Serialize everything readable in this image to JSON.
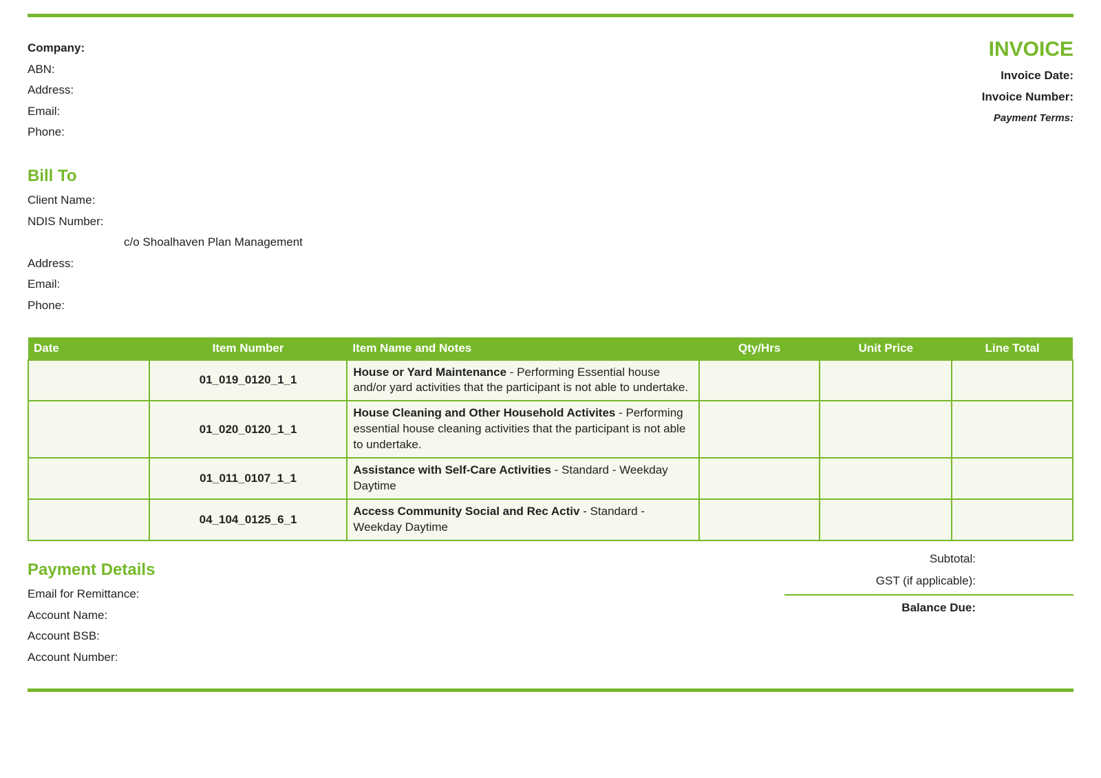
{
  "colors": {
    "accent": "#76b82a",
    "row_bg": "#f5f8ec",
    "text": "#222222",
    "header_text": "#ffffff"
  },
  "header": {
    "title": "INVOICE",
    "company": {
      "company_label": "Company:",
      "abn_label": "ABN:",
      "address_label": "Address:",
      "email_label": "Email:",
      "phone_label": "Phone:"
    },
    "meta": {
      "date_label": "Invoice Date:",
      "number_label": "Invoice Number:",
      "terms_label": "Payment Terms:"
    }
  },
  "billto": {
    "title": "Bill To",
    "client_label": "Client Name:",
    "ndis_label": "NDIS Number:",
    "co_line": "c/o Shoalhaven Plan Management",
    "address_label": "Address:",
    "email_label": "Email:",
    "phone_label": "Phone:"
  },
  "table": {
    "columns": {
      "date": "Date",
      "item": "Item Number",
      "desc": "Item Name and Notes",
      "qty": "Qty/Hrs",
      "unit": "Unit Price",
      "total": "Line Total"
    },
    "rows": [
      {
        "date": "",
        "item": "01_019_0120_1_1",
        "name": "House or Yard Maintenance",
        "notes": " - Performing Essential house and/or yard activities that the participant is not able to undertake.",
        "qty": "",
        "unit": "",
        "total": ""
      },
      {
        "date": "",
        "item": "01_020_0120_1_1",
        "name": "House Cleaning and Other Household Activites",
        "notes": " - Performing essential house cleaning activities that the participant is not able to undertake.",
        "qty": "",
        "unit": "",
        "total": ""
      },
      {
        "date": "",
        "item": "01_011_0107_1_1",
        "name": "Assistance with Self-Care Activities",
        "notes": " - Standard - Weekday Daytime",
        "qty": "",
        "unit": "",
        "total": ""
      },
      {
        "date": "",
        "item": "04_104_0125_6_1",
        "name": "Access Community Social and Rec Activ",
        "notes": " - Standard - Weekday Daytime",
        "qty": "",
        "unit": "",
        "total": ""
      }
    ]
  },
  "payment": {
    "title": "Payment Details",
    "remit_label": "Email for Remittance:",
    "acct_name_label": "Account Name:",
    "bsb_label": "Account BSB:",
    "acct_no_label": "Account Number:"
  },
  "totals": {
    "subtotal_label": "Subtotal:",
    "gst_label": "GST (if applicable):",
    "balance_label": "Balance Due:"
  }
}
